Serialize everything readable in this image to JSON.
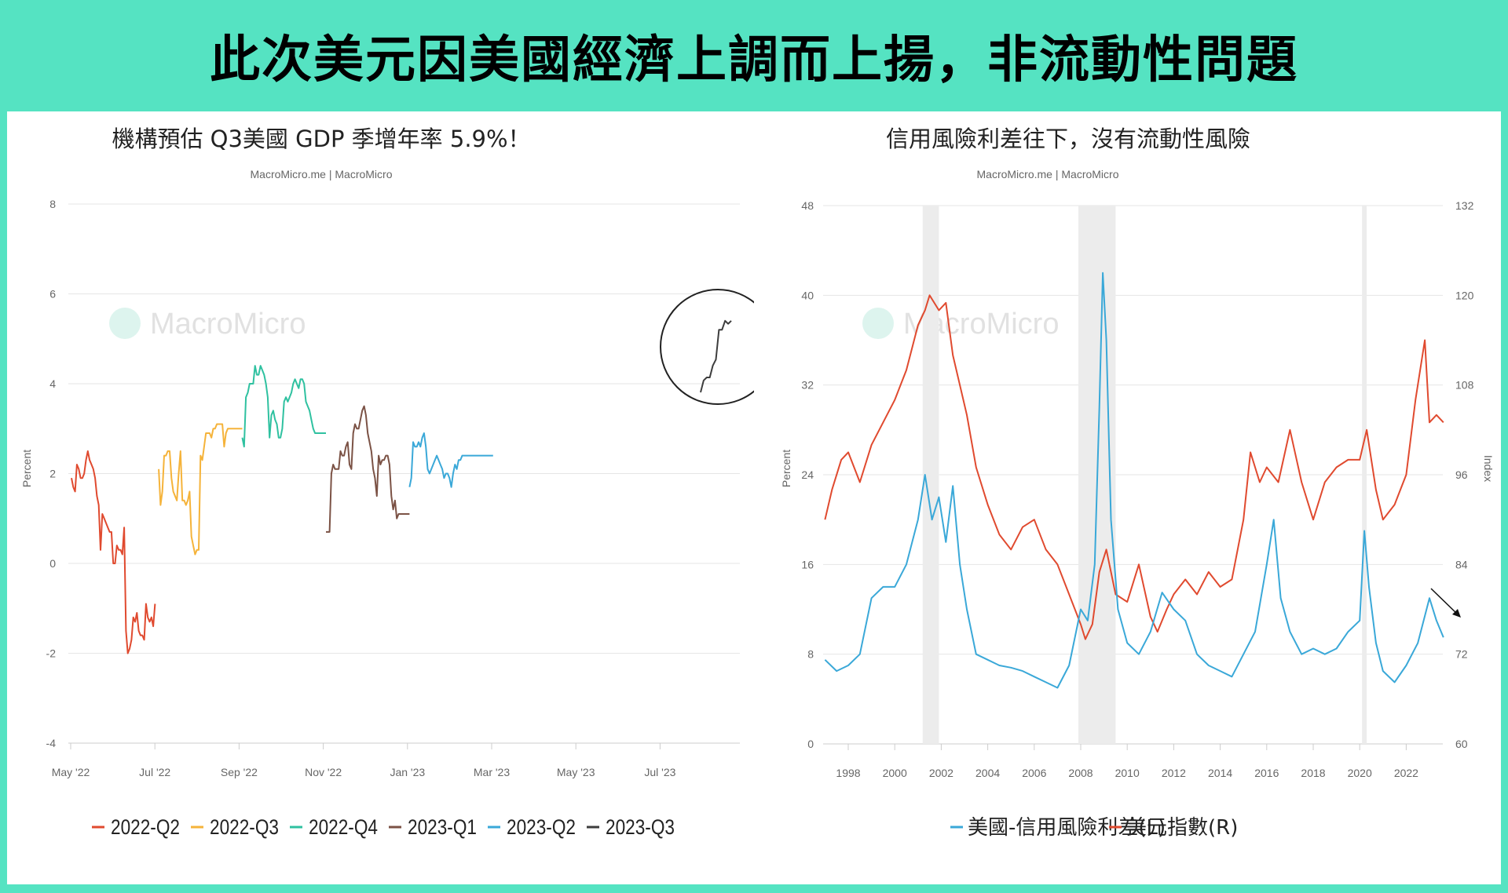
{
  "banner": {
    "title": "此次美元因美國經濟上調而上揚，非流動性問題"
  },
  "chart_data": [
    {
      "type": "line",
      "title": "機構預估 Q3美國 GDP 季增年率 5.9%！",
      "source": "MacroMicro.me | MacroMicro",
      "watermark": "MacroMicro",
      "ylabel": "Percent",
      "ylim": [
        -4,
        8
      ],
      "yticks": [
        "-4",
        "-2",
        "0",
        "2",
        "4",
        "6",
        "8"
      ],
      "xticks": [
        "May '22",
        "Jul '22",
        "Sep '22",
        "Nov '22",
        "Jan '23",
        "Mar '23",
        "May '23",
        "Jul '23"
      ],
      "grid": true,
      "legend_position": "bottom",
      "highlight": "circle around latest 2023-Q3 estimate",
      "series": [
        {
          "name": "2022-Q2",
          "color": "#e04a2f",
          "x": [
            0,
            2,
            4,
            6,
            8,
            10,
            12,
            14,
            16,
            18,
            20,
            22,
            24,
            26,
            28,
            30,
            32,
            34,
            36,
            38,
            40,
            42,
            44,
            46,
            48,
            50,
            52,
            54,
            56,
            58,
            60,
            62,
            64,
            66,
            68,
            70,
            72,
            74,
            76,
            78,
            80,
            82,
            84,
            86,
            88,
            90,
            92
          ],
          "values": [
            1.9,
            1.7,
            1.6,
            2.2,
            2.1,
            1.9,
            1.9,
            2.0,
            2.3,
            2.5,
            2.3,
            2.2,
            2.1,
            1.9,
            1.5,
            1.3,
            0.3,
            1.1,
            1.0,
            0.9,
            0.8,
            0.7,
            0.7,
            0.0,
            0.0,
            0.4,
            0.3,
            0.3,
            0.2,
            0.8,
            -1.5,
            -2.0,
            -1.9,
            -1.7,
            -1.2,
            -1.3,
            -1.1,
            -1.5,
            -1.6,
            -1.6,
            -1.7,
            -0.9,
            -1.2,
            -1.3,
            -1.2,
            -1.4,
            -0.9
          ]
        },
        {
          "name": "2022-Q3",
          "color": "#f5b33a",
          "x": [
            96,
            98,
            100,
            102,
            104,
            106,
            108,
            110,
            112,
            114,
            116,
            118,
            120,
            122,
            124,
            126,
            128,
            130,
            132,
            134,
            136,
            138,
            140,
            142,
            144,
            146,
            148,
            150,
            152,
            154,
            156,
            158,
            160,
            162,
            164,
            166,
            168,
            170,
            172,
            174,
            176,
            178,
            180,
            182,
            184,
            186,
            188
          ],
          "values": [
            2.1,
            1.3,
            1.6,
            2.4,
            2.4,
            2.5,
            2.5,
            1.9,
            1.6,
            1.5,
            1.4,
            2.0,
            2.5,
            1.4,
            1.4,
            1.3,
            1.4,
            1.6,
            0.6,
            0.4,
            0.2,
            0.3,
            0.3,
            2.4,
            2.3,
            2.6,
            2.9,
            2.9,
            2.9,
            2.8,
            3.0,
            3.0,
            3.1,
            3.1,
            3.1,
            3.1,
            2.6,
            2.9,
            3.0,
            3.0,
            3.0,
            3.0,
            3.0,
            3.0,
            3.0,
            3.0,
            3.0
          ]
        },
        {
          "name": "2022-Q4",
          "color": "#2fc1a0",
          "x": [
            188,
            190,
            192,
            194,
            196,
            198,
            200,
            202,
            204,
            206,
            208,
            210,
            212,
            214,
            216,
            218,
            220,
            222,
            224,
            226,
            228,
            230,
            232,
            234,
            236,
            238,
            240,
            242,
            244,
            246,
            248,
            250,
            252,
            254,
            256,
            258,
            260,
            262,
            264,
            266,
            268,
            270,
            272,
            274,
            276,
            278,
            280
          ],
          "values": [
            2.8,
            2.6,
            3.7,
            3.8,
            4.0,
            4.0,
            4.0,
            4.4,
            4.2,
            4.2,
            4.4,
            4.3,
            4.2,
            4.0,
            3.7,
            2.8,
            3.3,
            3.4,
            3.2,
            3.1,
            2.8,
            2.8,
            3.0,
            3.6,
            3.7,
            3.6,
            3.7,
            3.8,
            4.0,
            4.1,
            4.0,
            3.9,
            4.1,
            4.1,
            4.0,
            3.6,
            3.5,
            3.4,
            3.2,
            3.0,
            2.9,
            2.9,
            2.9,
            2.9,
            2.9,
            2.9,
            2.9
          ]
        },
        {
          "name": "2023-Q1",
          "color": "#7b5245",
          "x": [
            280,
            282,
            284,
            286,
            288,
            290,
            292,
            294,
            296,
            298,
            300,
            302,
            304,
            306,
            308,
            310,
            312,
            314,
            316,
            318,
            320,
            322,
            324,
            326,
            328,
            330,
            332,
            334,
            336,
            338,
            340,
            342,
            344,
            346,
            348,
            350,
            352,
            354,
            356,
            358,
            360,
            362,
            364,
            366,
            368,
            370,
            372
          ],
          "values": [
            0.7,
            0.7,
            0.7,
            2.0,
            2.2,
            2.1,
            2.1,
            2.1,
            2.5,
            2.4,
            2.4,
            2.6,
            2.7,
            2.2,
            2.1,
            2.9,
            3.1,
            3.0,
            3.0,
            3.2,
            3.4,
            3.5,
            3.3,
            2.9,
            2.7,
            2.5,
            2.1,
            1.9,
            1.5,
            2.4,
            2.2,
            2.3,
            2.3,
            2.4,
            2.4,
            2.2,
            1.5,
            1.2,
            1.4,
            1.0,
            1.1,
            1.1,
            1.1,
            1.1,
            1.1,
            1.1,
            1.1
          ]
        },
        {
          "name": "2023-Q2",
          "color": "#3aa8d8",
          "x": [
            372,
            374,
            376,
            378,
            380,
            382,
            384,
            386,
            388,
            390,
            392,
            394,
            396,
            398,
            400,
            402,
            404,
            406,
            408,
            410,
            412,
            414,
            416,
            418,
            420,
            422,
            424,
            426,
            428,
            430,
            432,
            434,
            436,
            438,
            440,
            442,
            444,
            446,
            448,
            450,
            452,
            454,
            456,
            458,
            460,
            462,
            464
          ],
          "values": [
            1.7,
            1.9,
            2.7,
            2.6,
            2.6,
            2.7,
            2.6,
            2.8,
            2.9,
            2.6,
            2.1,
            2.0,
            2.1,
            2.2,
            2.3,
            2.4,
            2.3,
            2.2,
            2.1,
            1.9,
            2.0,
            2.0,
            1.9,
            1.7,
            2.0,
            2.2,
            2.1,
            2.3,
            2.3,
            2.4,
            2.4,
            2.4,
            2.4,
            2.4,
            2.4,
            2.4,
            2.4,
            2.4,
            2.4,
            2.4,
            2.4,
            2.4,
            2.4,
            2.4,
            2.4,
            2.4,
            2.4
          ]
        },
        {
          "name": "2023-Q3",
          "color": "#3d3d3d",
          "x": [
            0,
            1,
            2,
            3,
            4,
            5,
            6,
            7,
            8,
            9,
            10
          ],
          "values": [
            3.5,
            3.9,
            4.0,
            4.0,
            4.4,
            4.6,
            5.6,
            5.6,
            5.9,
            5.8,
            5.9
          ]
        }
      ]
    },
    {
      "type": "line",
      "title": "信用風險利差往下，沒有流動性風險",
      "source": "MacroMicro.me | MacroMicro",
      "watermark": "MacroMicro",
      "ylabel_left": "Percent",
      "ylabel_right": "Index",
      "ylim_left": [
        0,
        48
      ],
      "ylim_right": [
        60,
        132
      ],
      "yticks_left": [
        "0",
        "8",
        "16",
        "24",
        "32",
        "40",
        "48"
      ],
      "yticks_right": [
        "60",
        "72",
        "84",
        "96",
        "108",
        "120",
        "132"
      ],
      "xticks": [
        "1998",
        "2000",
        "2002",
        "2004",
        "2006",
        "2008",
        "2010",
        "2012",
        "2014",
        "2016",
        "2018",
        "2020",
        "2022"
      ],
      "grid": true,
      "legend_position": "bottom",
      "recessions": [
        [
          2001.2,
          2001.9
        ],
        [
          2007.9,
          2009.5
        ],
        [
          2020.1,
          2020.3
        ]
      ],
      "annotation": "arrow pointing down at latest credit spread",
      "series": [
        {
          "name": "美國-信用風險利差(L)",
          "color": "#3aa8d8",
          "axis": "left",
          "x": [
            1997.0,
            1997.5,
            1998.0,
            1998.5,
            1999.0,
            1999.5,
            2000.0,
            2000.5,
            2001.0,
            2001.3,
            2001.6,
            2001.9,
            2002.2,
            2002.5,
            2002.8,
            2003.1,
            2003.5,
            2004.0,
            2004.5,
            2005.0,
            2005.5,
            2006.0,
            2006.5,
            2007.0,
            2007.5,
            2008.0,
            2008.3,
            2008.6,
            2008.8,
            2008.95,
            2009.1,
            2009.3,
            2009.6,
            2010.0,
            2010.5,
            2011.0,
            2011.5,
            2012.0,
            2012.5,
            2013.0,
            2013.5,
            2014.0,
            2014.5,
            2015.0,
            2015.5,
            2016.0,
            2016.3,
            2016.6,
            2017.0,
            2017.5,
            2018.0,
            2018.5,
            2019.0,
            2019.5,
            2020.0,
            2020.2,
            2020.4,
            2020.7,
            2021.0,
            2021.5,
            2022.0,
            2022.5,
            2023.0,
            2023.3,
            2023.6
          ],
          "values": [
            7.5,
            6.5,
            7.0,
            8.0,
            13.0,
            14.0,
            14.0,
            16.0,
            20.0,
            24.0,
            20.0,
            22.0,
            18.0,
            23.0,
            16.0,
            12.0,
            8.0,
            7.5,
            7.0,
            6.8,
            6.5,
            6.0,
            5.5,
            5.0,
            7.0,
            12.0,
            11.0,
            16.0,
            30.0,
            42.0,
            36.0,
            20.0,
            12.0,
            9.0,
            8.0,
            10.0,
            13.5,
            12.0,
            11.0,
            8.0,
            7.0,
            6.5,
            6.0,
            8.0,
            10.0,
            16.0,
            20.0,
            13.0,
            10.0,
            8.0,
            8.5,
            8.0,
            8.5,
            10.0,
            11.0,
            19.0,
            14.0,
            9.0,
            6.5,
            5.5,
            7.0,
            9.0,
            13.0,
            11.0,
            9.5
          ]
        },
        {
          "name": "美元指數(R)",
          "color": "#e04a2f",
          "axis": "right",
          "x": [
            1997.0,
            1997.3,
            1997.7,
            1998.0,
            1998.5,
            1999.0,
            1999.5,
            2000.0,
            2000.5,
            2001.0,
            2001.3,
            2001.5,
            2001.9,
            2002.2,
            2002.5,
            2002.8,
            2003.1,
            2003.5,
            2004.0,
            2004.5,
            2005.0,
            2005.5,
            2006.0,
            2006.5,
            2007.0,
            2007.5,
            2008.0,
            2008.2,
            2008.5,
            2008.8,
            2009.1,
            2009.5,
            2010.0,
            2010.5,
            2011.0,
            2011.3,
            2011.7,
            2012.0,
            2012.5,
            2013.0,
            2013.5,
            2014.0,
            2014.5,
            2015.0,
            2015.3,
            2015.7,
            2016.0,
            2016.5,
            2017.0,
            2017.5,
            2018.0,
            2018.5,
            2019.0,
            2019.5,
            2020.0,
            2020.3,
            2020.7,
            2021.0,
            2021.5,
            2022.0,
            2022.4,
            2022.8,
            2023.0,
            2023.3,
            2023.6
          ],
          "values": [
            90.0,
            94.0,
            98.0,
            99.0,
            95.0,
            100.0,
            103.0,
            106.0,
            110.0,
            116.0,
            118.0,
            120.0,
            118.0,
            119.0,
            112.0,
            108.0,
            104.0,
            97.0,
            92.0,
            88.0,
            86.0,
            89.0,
            90.0,
            86.0,
            84.0,
            80.0,
            76.0,
            74.0,
            76.0,
            83.0,
            86.0,
            80.0,
            79.0,
            84.0,
            77.0,
            75.0,
            78.0,
            80.0,
            82.0,
            80.0,
            83.0,
            81.0,
            82.0,
            90.0,
            99.0,
            95.0,
            97.0,
            95.0,
            102.0,
            95.0,
            90.0,
            95.0,
            97.0,
            98.0,
            98.0,
            102.0,
            94.0,
            90.0,
            92.0,
            96.0,
            106.0,
            114.0,
            103.0,
            104.0,
            103.0
          ]
        }
      ]
    }
  ]
}
